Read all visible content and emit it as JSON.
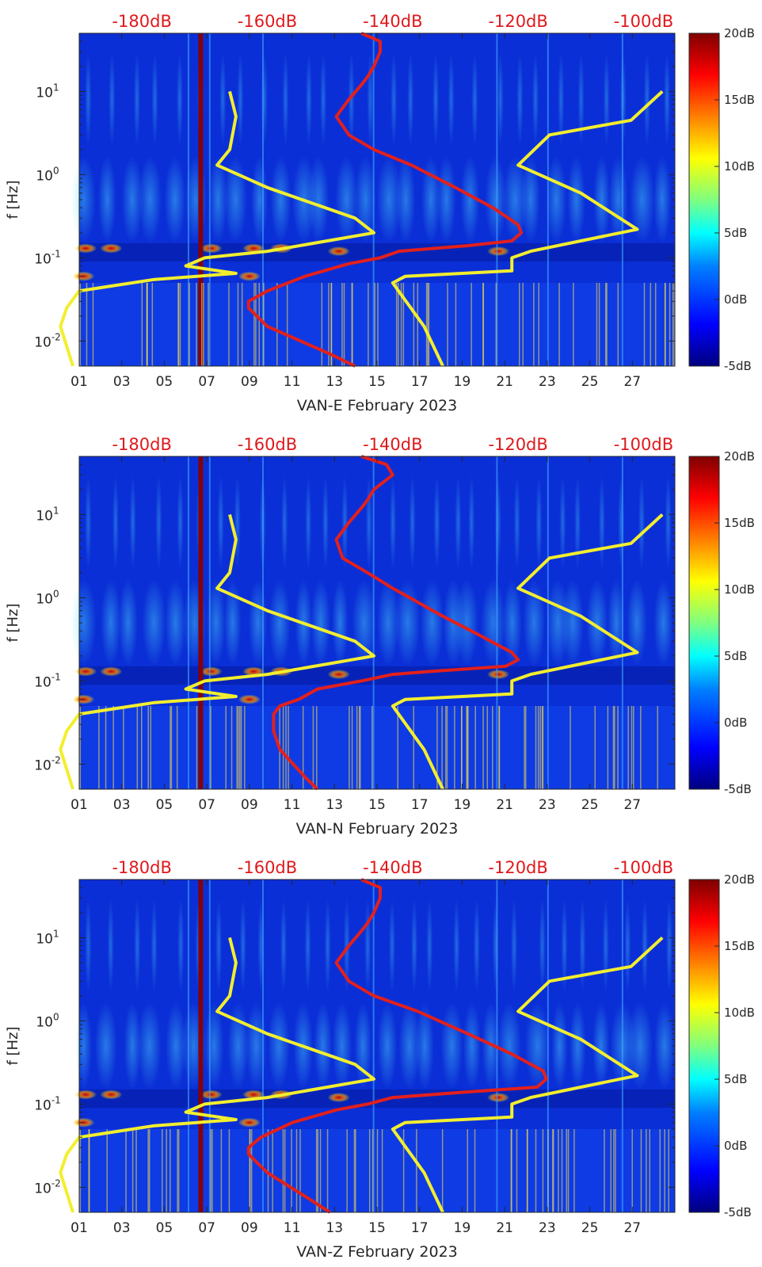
{
  "colors": {
    "background_series": "#0b2fd6",
    "red_series": "#e3201c",
    "yellow_series": "#f2ee2f",
    "top_axis_labels": "#e0191c",
    "colormap": [
      "#00007f",
      "#0000ff",
      "#007fff",
      "#00ffff",
      "#7fff7f",
      "#ffff00",
      "#ff7f00",
      "#ff0000",
      "#7f0000"
    ]
  },
  "chart_data": [
    {
      "type": "heatmap",
      "xlabel": "VAN-E February 2023",
      "ylabel": "f [Hz]",
      "y_scale": "log",
      "ylim": [
        0.005,
        50
      ],
      "xlim": [
        1,
        29
      ],
      "x_ticks": [
        "01",
        "03",
        "05",
        "07",
        "09",
        "11",
        "13",
        "15",
        "17",
        "19",
        "21",
        "23",
        "25",
        "27"
      ],
      "y_ticks": [
        "10",
        "10",
        "10",
        "10"
      ],
      "y_tick_exponents": [
        "1",
        "0",
        "-1",
        "-2"
      ],
      "top_ticks": [
        "-180dB",
        "-160dB",
        "-140dB",
        "-120dB",
        "-100dB"
      ],
      "colorbar": {
        "ticks": [
          "20dB",
          "15dB",
          "10dB",
          "5dB",
          "0dB",
          "-5dB"
        ],
        "range": [
          -5,
          20
        ]
      },
      "series": [
        {
          "color": "red",
          "points": [
            [
              -145,
              50
            ],
            [
              -142,
              40
            ],
            [
              -142,
              30
            ],
            [
              -143,
              20
            ],
            [
              -144,
              15
            ],
            [
              -145,
              12
            ],
            [
              -147,
              8
            ],
            [
              -149,
              5
            ],
            [
              -147,
              3
            ],
            [
              -143,
              2
            ],
            [
              -137,
              1.3
            ],
            [
              -130,
              0.7
            ],
            [
              -124,
              0.4
            ],
            [
              -120,
              0.25
            ],
            [
              -119.5,
              0.2
            ],
            [
              -121,
              0.16
            ],
            [
              -128,
              0.14
            ],
            [
              -139,
              0.12
            ],
            [
              -142,
              0.1
            ],
            [
              -147,
              0.085
            ],
            [
              -154,
              0.06
            ],
            [
              -160,
              0.04
            ],
            [
              -163,
              0.03
            ],
            [
              -163,
              0.025
            ],
            [
              -160,
              0.015
            ],
            [
              -150,
              0.007
            ],
            [
              -146,
              0.005
            ]
          ]
        },
        {
          "color": "yellow",
          "points": [
            [
              -166,
              10
            ],
            [
              -165,
              5
            ],
            [
              -166,
              2
            ],
            [
              -168,
              1.3
            ],
            [
              -160,
              0.7
            ],
            [
              -146,
              0.3
            ],
            [
              -143,
              0.2
            ],
            [
              -160,
              0.12
            ],
            [
              -170,
              0.1
            ],
            [
              -173,
              0.08
            ],
            [
              -165,
              0.065
            ],
            [
              -178,
              0.055
            ],
            [
              -190,
              0.04
            ],
            [
              -192,
              0.025
            ],
            [
              -193,
              0.015
            ],
            [
              -191,
              0.005
            ]
          ]
        },
        {
          "color": "yellow",
          "points": [
            [
              -97,
              10
            ],
            [
              -102,
              4.5
            ],
            [
              -115,
              3
            ],
            [
              -120,
              1.3
            ],
            [
              -110,
              0.6
            ],
            [
              -101,
              0.22
            ],
            [
              -110,
              0.16
            ],
            [
              -118,
              0.12
            ],
            [
              -121,
              0.1
            ],
            [
              -121,
              0.07
            ],
            [
              -138,
              0.06
            ],
            [
              -140,
              0.05
            ],
            [
              -135,
              0.015
            ],
            [
              -132,
              0.005
            ]
          ]
        }
      ]
    },
    {
      "type": "heatmap",
      "xlabel": "VAN-N February 2023",
      "ylabel": "f [Hz]",
      "y_scale": "log",
      "ylim": [
        0.005,
        50
      ],
      "xlim": [
        1,
        29
      ],
      "x_ticks": [
        "01",
        "03",
        "05",
        "07",
        "09",
        "11",
        "13",
        "15",
        "17",
        "19",
        "21",
        "23",
        "25",
        "27"
      ],
      "y_ticks": [
        "10",
        "10",
        "10",
        "10"
      ],
      "y_tick_exponents": [
        "1",
        "0",
        "-1",
        "-2"
      ],
      "top_ticks": [
        "-180dB",
        "-160dB",
        "-140dB",
        "-120dB",
        "-100dB"
      ],
      "colorbar": {
        "ticks": [
          "20dB",
          "15dB",
          "10dB",
          "5dB",
          "0dB",
          "-5dB"
        ],
        "range": [
          -5,
          20
        ]
      },
      "series": [
        {
          "color": "red",
          "points": [
            [
              -145,
              50
            ],
            [
              -141,
              40
            ],
            [
              -140,
              30
            ],
            [
              -143,
              20
            ],
            [
              -144,
              15
            ],
            [
              -145,
              12
            ],
            [
              -147,
              8
            ],
            [
              -149,
              5
            ],
            [
              -148,
              3
            ],
            [
              -144,
              2
            ],
            [
              -140,
              1.3
            ],
            [
              -132,
              0.6
            ],
            [
              -126,
              0.35
            ],
            [
              -121,
              0.22
            ],
            [
              -120,
              0.18
            ],
            [
              -122,
              0.15
            ],
            [
              -134,
              0.13
            ],
            [
              -140,
              0.12
            ],
            [
              -145,
              0.1
            ],
            [
              -152,
              0.08
            ],
            [
              -155,
              0.06
            ],
            [
              -158,
              0.05
            ],
            [
              -159,
              0.04
            ],
            [
              -159,
              0.025
            ],
            [
              -158,
              0.015
            ],
            [
              -154,
              0.007
            ],
            [
              -152,
              0.005
            ]
          ]
        },
        {
          "color": "yellow",
          "points": [
            [
              -166,
              10
            ],
            [
              -165,
              5
            ],
            [
              -166,
              2
            ],
            [
              -168,
              1.3
            ],
            [
              -160,
              0.7
            ],
            [
              -146,
              0.3
            ],
            [
              -143,
              0.2
            ],
            [
              -160,
              0.12
            ],
            [
              -170,
              0.1
            ],
            [
              -173,
              0.08
            ],
            [
              -165,
              0.065
            ],
            [
              -178,
              0.055
            ],
            [
              -190,
              0.04
            ],
            [
              -192,
              0.025
            ],
            [
              -193,
              0.015
            ],
            [
              -191,
              0.005
            ]
          ]
        },
        {
          "color": "yellow",
          "points": [
            [
              -97,
              10
            ],
            [
              -102,
              4.5
            ],
            [
              -115,
              3
            ],
            [
              -120,
              1.3
            ],
            [
              -110,
              0.6
            ],
            [
              -101,
              0.22
            ],
            [
              -110,
              0.16
            ],
            [
              -118,
              0.12
            ],
            [
              -121,
              0.1
            ],
            [
              -121,
              0.07
            ],
            [
              -138,
              0.06
            ],
            [
              -140,
              0.05
            ],
            [
              -135,
              0.015
            ],
            [
              -132,
              0.005
            ]
          ]
        }
      ]
    },
    {
      "type": "heatmap",
      "xlabel": "VAN-Z February 2023",
      "ylabel": "f [Hz]",
      "y_scale": "log",
      "ylim": [
        0.005,
        50
      ],
      "xlim": [
        1,
        29
      ],
      "x_ticks": [
        "01",
        "03",
        "05",
        "07",
        "09",
        "11",
        "13",
        "15",
        "17",
        "19",
        "21",
        "23",
        "25",
        "27"
      ],
      "y_ticks": [
        "10",
        "10",
        "10",
        "10"
      ],
      "y_tick_exponents": [
        "1",
        "0",
        "-1",
        "-2"
      ],
      "top_ticks": [
        "-180dB",
        "-160dB",
        "-140dB",
        "-120dB",
        "-100dB"
      ],
      "colorbar": {
        "ticks": [
          "20dB",
          "15dB",
          "10dB",
          "5dB",
          "0dB",
          "-5dB"
        ],
        "range": [
          -5,
          20
        ]
      },
      "series": [
        {
          "color": "red",
          "points": [
            [
              -145,
              50
            ],
            [
              -142,
              40
            ],
            [
              -142,
              30
            ],
            [
              -143,
              20
            ],
            [
              -144,
              15
            ],
            [
              -145,
              12
            ],
            [
              -147,
              8
            ],
            [
              -149,
              5
            ],
            [
              -147,
              3
            ],
            [
              -143,
              2
            ],
            [
              -136,
              1.3
            ],
            [
              -128,
              0.7
            ],
            [
              -121,
              0.4
            ],
            [
              -116,
              0.25
            ],
            [
              -115.5,
              0.2
            ],
            [
              -117,
              0.16
            ],
            [
              -128,
              0.14
            ],
            [
              -140,
              0.12
            ],
            [
              -144,
              0.1
            ],
            [
              -149,
              0.085
            ],
            [
              -156,
              0.06
            ],
            [
              -161,
              0.04
            ],
            [
              -163,
              0.03
            ],
            [
              -163,
              0.025
            ],
            [
              -160,
              0.015
            ],
            [
              -153,
              0.007
            ],
            [
              -150,
              0.005
            ]
          ]
        },
        {
          "color": "yellow",
          "points": [
            [
              -166,
              10
            ],
            [
              -165,
              5
            ],
            [
              -166,
              2
            ],
            [
              -168,
              1.3
            ],
            [
              -160,
              0.7
            ],
            [
              -146,
              0.3
            ],
            [
              -143,
              0.2
            ],
            [
              -160,
              0.12
            ],
            [
              -170,
              0.1
            ],
            [
              -173,
              0.08
            ],
            [
              -165,
              0.065
            ],
            [
              -178,
              0.055
            ],
            [
              -190,
              0.04
            ],
            [
              -192,
              0.025
            ],
            [
              -193,
              0.015
            ],
            [
              -191,
              0.005
            ]
          ]
        },
        {
          "color": "yellow",
          "points": [
            [
              -97,
              10
            ],
            [
              -102,
              4.5
            ],
            [
              -115,
              3
            ],
            [
              -120,
              1.3
            ],
            [
              -110,
              0.6
            ],
            [
              -101,
              0.22
            ],
            [
              -110,
              0.16
            ],
            [
              -118,
              0.12
            ],
            [
              -121,
              0.1
            ],
            [
              -121,
              0.07
            ],
            [
              -138,
              0.06
            ],
            [
              -140,
              0.05
            ],
            [
              -135,
              0.015
            ],
            [
              -132,
              0.005
            ]
          ]
        }
      ]
    }
  ]
}
